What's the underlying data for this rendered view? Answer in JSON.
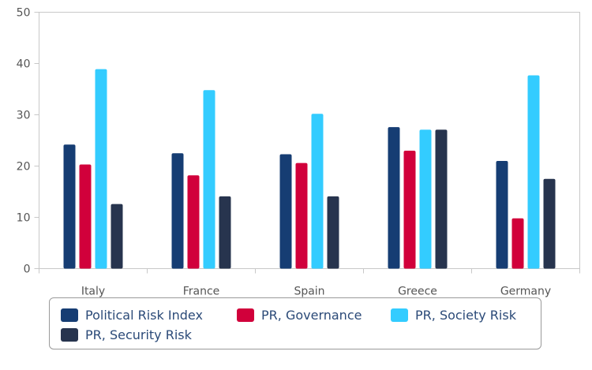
{
  "chart_data": {
    "type": "bar",
    "categories": [
      "Italy",
      "France",
      "Spain",
      "Greece",
      "Germany"
    ],
    "series": [
      {
        "name": "Political Risk Index",
        "color": "#163d73",
        "values": [
          24.2,
          22.5,
          22.3,
          27.6,
          21.0
        ]
      },
      {
        "name": "PR, Governance",
        "color": "#d1003b",
        "values": [
          20.3,
          18.2,
          20.6,
          23.0,
          9.8
        ]
      },
      {
        "name": "PR, Society Risk",
        "color": "#33ccff",
        "values": [
          38.9,
          34.8,
          30.2,
          27.1,
          37.7
        ]
      },
      {
        "name": "PR, Security Risk",
        "color": "#27344e",
        "values": [
          12.6,
          14.1,
          14.1,
          27.1,
          17.5
        ]
      }
    ],
    "ylim": [
      0,
      50
    ],
    "yticks": [
      0,
      10,
      20,
      30,
      40,
      50
    ],
    "grid": false,
    "legend_position": "bottom"
  }
}
